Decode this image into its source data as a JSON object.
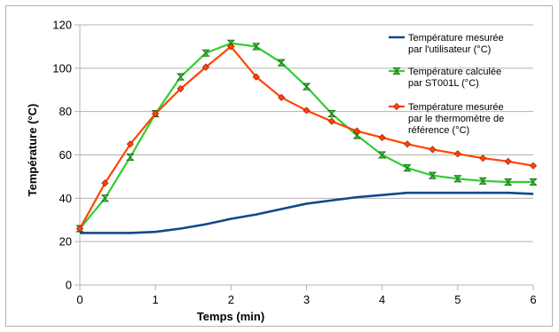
{
  "chart_data": {
    "type": "line",
    "title": "",
    "xlabel": "Temps (min)",
    "ylabel": "Température (°C)",
    "xlim": [
      0,
      6
    ],
    "ylim": [
      0,
      120
    ],
    "x_ticks": [
      0,
      1,
      2,
      3,
      4,
      5,
      6
    ],
    "y_ticks": [
      0,
      20,
      40,
      60,
      80,
      100,
      120
    ],
    "grid": "horizontal",
    "legend_position": "right",
    "series": [
      {
        "name": "Température mesurée par l'utilisateur  (°C)",
        "legend_lines": [
          "Température mesurée",
          "par l'utilisateur  (°C)"
        ],
        "color": "#0e4a8a",
        "marker": "none",
        "x": [
          0,
          0.333,
          0.667,
          1,
          1.333,
          1.667,
          2,
          2.333,
          2.667,
          3,
          3.333,
          3.667,
          4,
          4.333,
          4.667,
          5,
          5.333,
          5.667,
          6
        ],
        "y": [
          24,
          24,
          24,
          24.5,
          26,
          28,
          30.5,
          32.5,
          35,
          37.5,
          39,
          40.5,
          41.5,
          42.5,
          42.5,
          42.5,
          42.5,
          42.5,
          42
        ]
      },
      {
        "name": "Température calculée par ST001L  (°C)",
        "legend_lines": [
          "Température calculée",
          "par ST001L  (°C)"
        ],
        "color": "#33cc33",
        "marker": "bowtie",
        "x": [
          0,
          0.333,
          0.667,
          1,
          1.333,
          1.667,
          2,
          2.333,
          2.667,
          3,
          3.333,
          3.667,
          4,
          4.333,
          4.667,
          5,
          5.333,
          5.667,
          6
        ],
        "y": [
          26,
          40,
          59,
          79,
          96,
          107,
          111.5,
          110,
          102.5,
          91.5,
          79,
          69,
          60,
          54,
          50.5,
          49,
          48,
          47.5,
          47.5
        ]
      },
      {
        "name": "Température mesurée par le thermomètre de référence (°C)",
        "legend_lines": [
          "Température mesurée",
          "par le thermomètre de",
          "référence (°C)"
        ],
        "color": "#ff4400",
        "marker": "diamond",
        "x": [
          0,
          0.333,
          0.667,
          1,
          1.333,
          1.667,
          2,
          2.333,
          2.667,
          3,
          3.333,
          3.667,
          4,
          4.333,
          4.667,
          5,
          5.333,
          5.667,
          6
        ],
        "y": [
          26,
          47,
          65,
          79,
          90.5,
          100.5,
          110,
          96,
          86.5,
          80.5,
          75.5,
          71,
          68,
          65,
          62.5,
          60.5,
          58.5,
          57,
          55
        ]
      }
    ]
  }
}
